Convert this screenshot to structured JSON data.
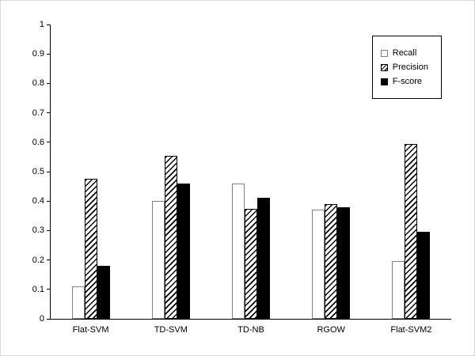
{
  "chart_data": {
    "type": "bar",
    "title": "",
    "xlabel": "",
    "ylabel": "",
    "categories": [
      "Flat-SVM",
      "TD-SVM",
      "TD-NB",
      "RGOW",
      "Flat-SVM2"
    ],
    "series": [
      {
        "name": "Recall",
        "style": "white",
        "values": [
          0.11,
          0.4,
          0.46,
          0.37,
          0.195
        ]
      },
      {
        "name": "Precision",
        "style": "hatched",
        "values": [
          0.475,
          0.555,
          0.375,
          0.39,
          0.595
        ]
      },
      {
        "name": "F-score",
        "style": "black",
        "values": [
          0.18,
          0.46,
          0.41,
          0.38,
          0.295
        ]
      }
    ],
    "ylim": [
      0,
      1
    ],
    "yticks": [
      "0",
      "0.1",
      "0.2",
      "0.3",
      "0.4",
      "0.5",
      "0.6",
      "0.7",
      "0.8",
      "0.9",
      "1"
    ],
    "grid": false,
    "legend_position": "top-right",
    "colors": {
      "axis": "#000000",
      "bar_fill_black": "#000000",
      "bar_fill_white": "#ffffff",
      "bar_outline": "#808080",
      "hatch": "#000000"
    }
  }
}
